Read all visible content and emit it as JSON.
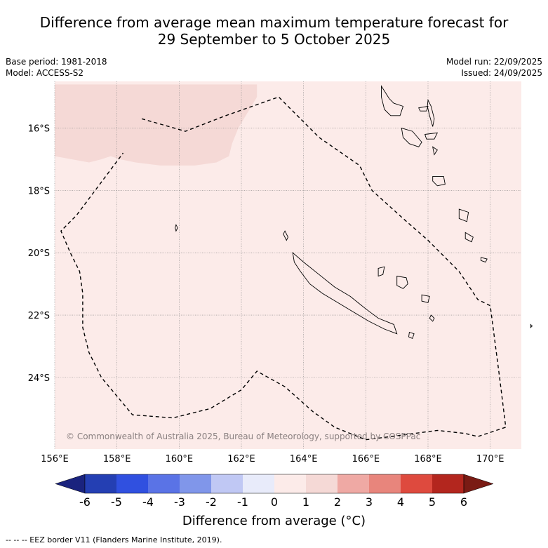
{
  "title": {
    "line1": "Difference from average mean maximum temperature forecast for",
    "line2": "29 September to 5 October 2025"
  },
  "meta": {
    "base_period": "Base period: 1981-2018",
    "model": "Model: ACCESS-S2",
    "model_run": "Model run: 22/09/2025",
    "issued": "Issued: 24/09/2025"
  },
  "map": {
    "lon_range": [
      156,
      171
    ],
    "lat_range": [
      -14.5,
      -26.3
    ],
    "lon_ticks": [
      {
        "v": 156,
        "label": "156°E"
      },
      {
        "v": 158,
        "label": "158°E"
      },
      {
        "v": 160,
        "label": "160°E"
      },
      {
        "v": 162,
        "label": "162°E"
      },
      {
        "v": 164,
        "label": "164°E"
      },
      {
        "v": 166,
        "label": "166°E"
      },
      {
        "v": 168,
        "label": "168°E"
      },
      {
        "v": 170,
        "label": "170°E"
      }
    ],
    "lat_ticks": [
      {
        "v": -16,
        "label": "16°S"
      },
      {
        "v": -18,
        "label": "18°S"
      },
      {
        "v": -20,
        "label": "20°S"
      },
      {
        "v": -22,
        "label": "22°S"
      },
      {
        "v": -24,
        "label": "24°S"
      }
    ],
    "background_anomaly_range": "0 to 1",
    "background_color": "#fcebe9",
    "warm_patch_anomaly_range": "1 to 2",
    "warm_patch_color": "#f5d9d6",
    "warm_patch": [
      [
        156.0,
        -14.6
      ],
      [
        162.5,
        -14.6
      ],
      [
        162.5,
        -15.0
      ],
      [
        162.2,
        -15.5
      ],
      [
        161.9,
        -16.0
      ],
      [
        161.7,
        -16.5
      ],
      [
        161.6,
        -16.9
      ],
      [
        161.2,
        -17.1
      ],
      [
        160.5,
        -17.2
      ],
      [
        159.4,
        -17.2
      ],
      [
        158.6,
        -17.1
      ],
      [
        158.1,
        -17.0
      ],
      [
        157.8,
        -16.9
      ],
      [
        157.5,
        -17.0
      ],
      [
        157.1,
        -17.1
      ],
      [
        156.0,
        -16.9
      ]
    ],
    "eez_border": [
      [
        158.8,
        -15.7
      ],
      [
        160.2,
        -16.1
      ],
      [
        161.5,
        -15.6
      ],
      [
        163.2,
        -15.0
      ],
      [
        164.5,
        -16.3
      ],
      [
        165.8,
        -17.2
      ],
      [
        166.2,
        -18.0
      ],
      [
        167.2,
        -18.9
      ],
      [
        168.0,
        -19.6
      ],
      [
        169.0,
        -20.6
      ],
      [
        169.6,
        -21.5
      ],
      [
        170.0,
        -21.7
      ],
      [
        170.3,
        -24.0
      ],
      [
        170.5,
        -25.6
      ],
      [
        169.6,
        -25.9
      ],
      [
        169.2,
        -25.8
      ],
      [
        168.3,
        -25.7
      ],
      [
        166.8,
        -25.9
      ],
      [
        166.0,
        -26.0
      ],
      [
        165.0,
        -25.6
      ],
      [
        164.3,
        -25.1
      ],
      [
        163.4,
        -24.3
      ],
      [
        162.5,
        -23.8
      ],
      [
        162.0,
        -24.4
      ],
      [
        161.0,
        -25.0
      ],
      [
        159.8,
        -25.3
      ],
      [
        158.5,
        -25.2
      ],
      [
        157.5,
        -24.0
      ],
      [
        157.1,
        -23.2
      ],
      [
        156.9,
        -22.4
      ],
      [
        156.9,
        -21.3
      ],
      [
        156.8,
        -20.6
      ],
      [
        156.5,
        -20.0
      ],
      [
        156.2,
        -19.3
      ],
      [
        156.7,
        -18.8
      ],
      [
        157.3,
        -18.0
      ],
      [
        158.2,
        -16.8
      ]
    ],
    "islands": [
      {
        "name": "New Caledonia Grande Terre",
        "coords": [
          [
            163.65,
            -20.0
          ],
          [
            164.0,
            -20.3
          ],
          [
            164.5,
            -20.7
          ],
          [
            165.0,
            -21.1
          ],
          [
            165.5,
            -21.4
          ],
          [
            166.0,
            -21.8
          ],
          [
            166.4,
            -22.1
          ],
          [
            166.9,
            -22.3
          ],
          [
            167.0,
            -22.6
          ],
          [
            166.6,
            -22.45
          ],
          [
            166.1,
            -22.2
          ],
          [
            165.6,
            -21.9
          ],
          [
            165.1,
            -21.6
          ],
          [
            164.6,
            -21.3
          ],
          [
            164.2,
            -21.0
          ],
          [
            163.9,
            -20.6
          ],
          [
            163.7,
            -20.3
          ]
        ]
      },
      {
        "name": "Belep",
        "coords": [
          [
            163.4,
            -19.3
          ],
          [
            163.5,
            -19.5
          ],
          [
            163.45,
            -19.6
          ],
          [
            163.35,
            -19.4
          ]
        ]
      },
      {
        "name": "Ouvea",
        "coords": [
          [
            166.4,
            -20.5
          ],
          [
            166.6,
            -20.45
          ],
          [
            166.55,
            -20.7
          ],
          [
            166.4,
            -20.75
          ]
        ]
      },
      {
        "name": "Lifou",
        "coords": [
          [
            167.0,
            -20.75
          ],
          [
            167.3,
            -20.8
          ],
          [
            167.35,
            -21.0
          ],
          [
            167.2,
            -21.15
          ],
          [
            167.0,
            -21.05
          ]
        ]
      },
      {
        "name": "Mare",
        "coords": [
          [
            167.8,
            -21.35
          ],
          [
            168.05,
            -21.4
          ],
          [
            168.0,
            -21.6
          ],
          [
            167.8,
            -21.55
          ]
        ]
      },
      {
        "name": "Isle of Pines",
        "coords": [
          [
            167.4,
            -22.55
          ],
          [
            167.55,
            -22.6
          ],
          [
            167.5,
            -22.75
          ],
          [
            167.38,
            -22.7
          ]
        ]
      },
      {
        "name": "Chesterfield",
        "coords": [
          [
            159.9,
            -19.1
          ],
          [
            159.95,
            -19.2
          ],
          [
            159.9,
            -19.3
          ],
          [
            159.87,
            -19.2
          ]
        ]
      },
      {
        "name": "Espiritu Santo",
        "coords": [
          [
            166.5,
            -14.65
          ],
          [
            166.75,
            -15.05
          ],
          [
            166.9,
            -15.2
          ],
          [
            167.2,
            -15.3
          ],
          [
            167.1,
            -15.6
          ],
          [
            166.8,
            -15.6
          ],
          [
            166.6,
            -15.4
          ],
          [
            166.5,
            -15.0
          ]
        ]
      },
      {
        "name": "Maewo/Pentecost",
        "coords": [
          [
            168.0,
            -15.1
          ],
          [
            168.1,
            -15.3
          ],
          [
            168.2,
            -15.7
          ],
          [
            168.15,
            -15.95
          ],
          [
            168.05,
            -15.6
          ],
          [
            167.98,
            -15.3
          ]
        ]
      },
      {
        "name": "Ambae",
        "coords": [
          [
            167.7,
            -15.35
          ],
          [
            168.0,
            -15.3
          ],
          [
            167.95,
            -15.45
          ],
          [
            167.75,
            -15.45
          ]
        ]
      },
      {
        "name": "Malakula",
        "coords": [
          [
            167.15,
            -16.0
          ],
          [
            167.5,
            -16.1
          ],
          [
            167.8,
            -16.45
          ],
          [
            167.7,
            -16.6
          ],
          [
            167.4,
            -16.5
          ],
          [
            167.2,
            -16.3
          ]
        ]
      },
      {
        "name": "Ambrym",
        "coords": [
          [
            167.9,
            -16.2
          ],
          [
            168.3,
            -16.15
          ],
          [
            168.2,
            -16.35
          ],
          [
            167.95,
            -16.35
          ]
        ]
      },
      {
        "name": "Epi",
        "coords": [
          [
            168.15,
            -16.6
          ],
          [
            168.3,
            -16.7
          ],
          [
            168.2,
            -16.85
          ]
        ]
      },
      {
        "name": "Efate",
        "coords": [
          [
            168.15,
            -17.55
          ],
          [
            168.5,
            -17.55
          ],
          [
            168.55,
            -17.8
          ],
          [
            168.3,
            -17.85
          ],
          [
            168.15,
            -17.7
          ]
        ]
      },
      {
        "name": "Erromango",
        "coords": [
          [
            169.0,
            -18.6
          ],
          [
            169.3,
            -18.7
          ],
          [
            169.25,
            -19.0
          ],
          [
            169.0,
            -18.9
          ]
        ]
      },
      {
        "name": "Tanna",
        "coords": [
          [
            169.2,
            -19.35
          ],
          [
            169.45,
            -19.5
          ],
          [
            169.4,
            -19.65
          ],
          [
            169.2,
            -19.55
          ]
        ]
      },
      {
        "name": "Aneityum",
        "coords": [
          [
            169.7,
            -20.15
          ],
          [
            169.9,
            -20.2
          ],
          [
            169.85,
            -20.3
          ],
          [
            169.7,
            -20.25
          ]
        ]
      },
      {
        "name": "Walpole",
        "coords": [
          [
            168.1,
            -22.0
          ],
          [
            168.2,
            -22.1
          ],
          [
            168.15,
            -22.2
          ],
          [
            168.05,
            -22.1
          ]
        ]
      },
      {
        "name": "Mathew",
        "coords": [
          [
            171.3,
            -22.3
          ],
          [
            171.35,
            -22.35
          ],
          [
            171.3,
            -22.4
          ]
        ]
      }
    ],
    "copyright": "© Commonwealth of Australia 2025, Bureau of Meteorology, supported by COSPPac"
  },
  "colorbar": {
    "title": "Difference from average (°C)",
    "ticks": [
      "-6",
      "-5",
      "-4",
      "-3",
      "-2",
      "-1",
      "0",
      "1",
      "2",
      "3",
      "4",
      "5",
      "6"
    ],
    "colors": [
      "#1a237e",
      "#243fb3",
      "#3050e0",
      "#5a73e6",
      "#8096ea",
      "#c0c8f4",
      "#e8ebfa",
      "#fcebe9",
      "#f5d9d6",
      "#efa9a4",
      "#e8857c",
      "#de4a3e",
      "#b3261e",
      "#7a1b14"
    ]
  },
  "footnote": "-- -- -- EEZ border V11 (Flanders Marine Institute, 2019)."
}
